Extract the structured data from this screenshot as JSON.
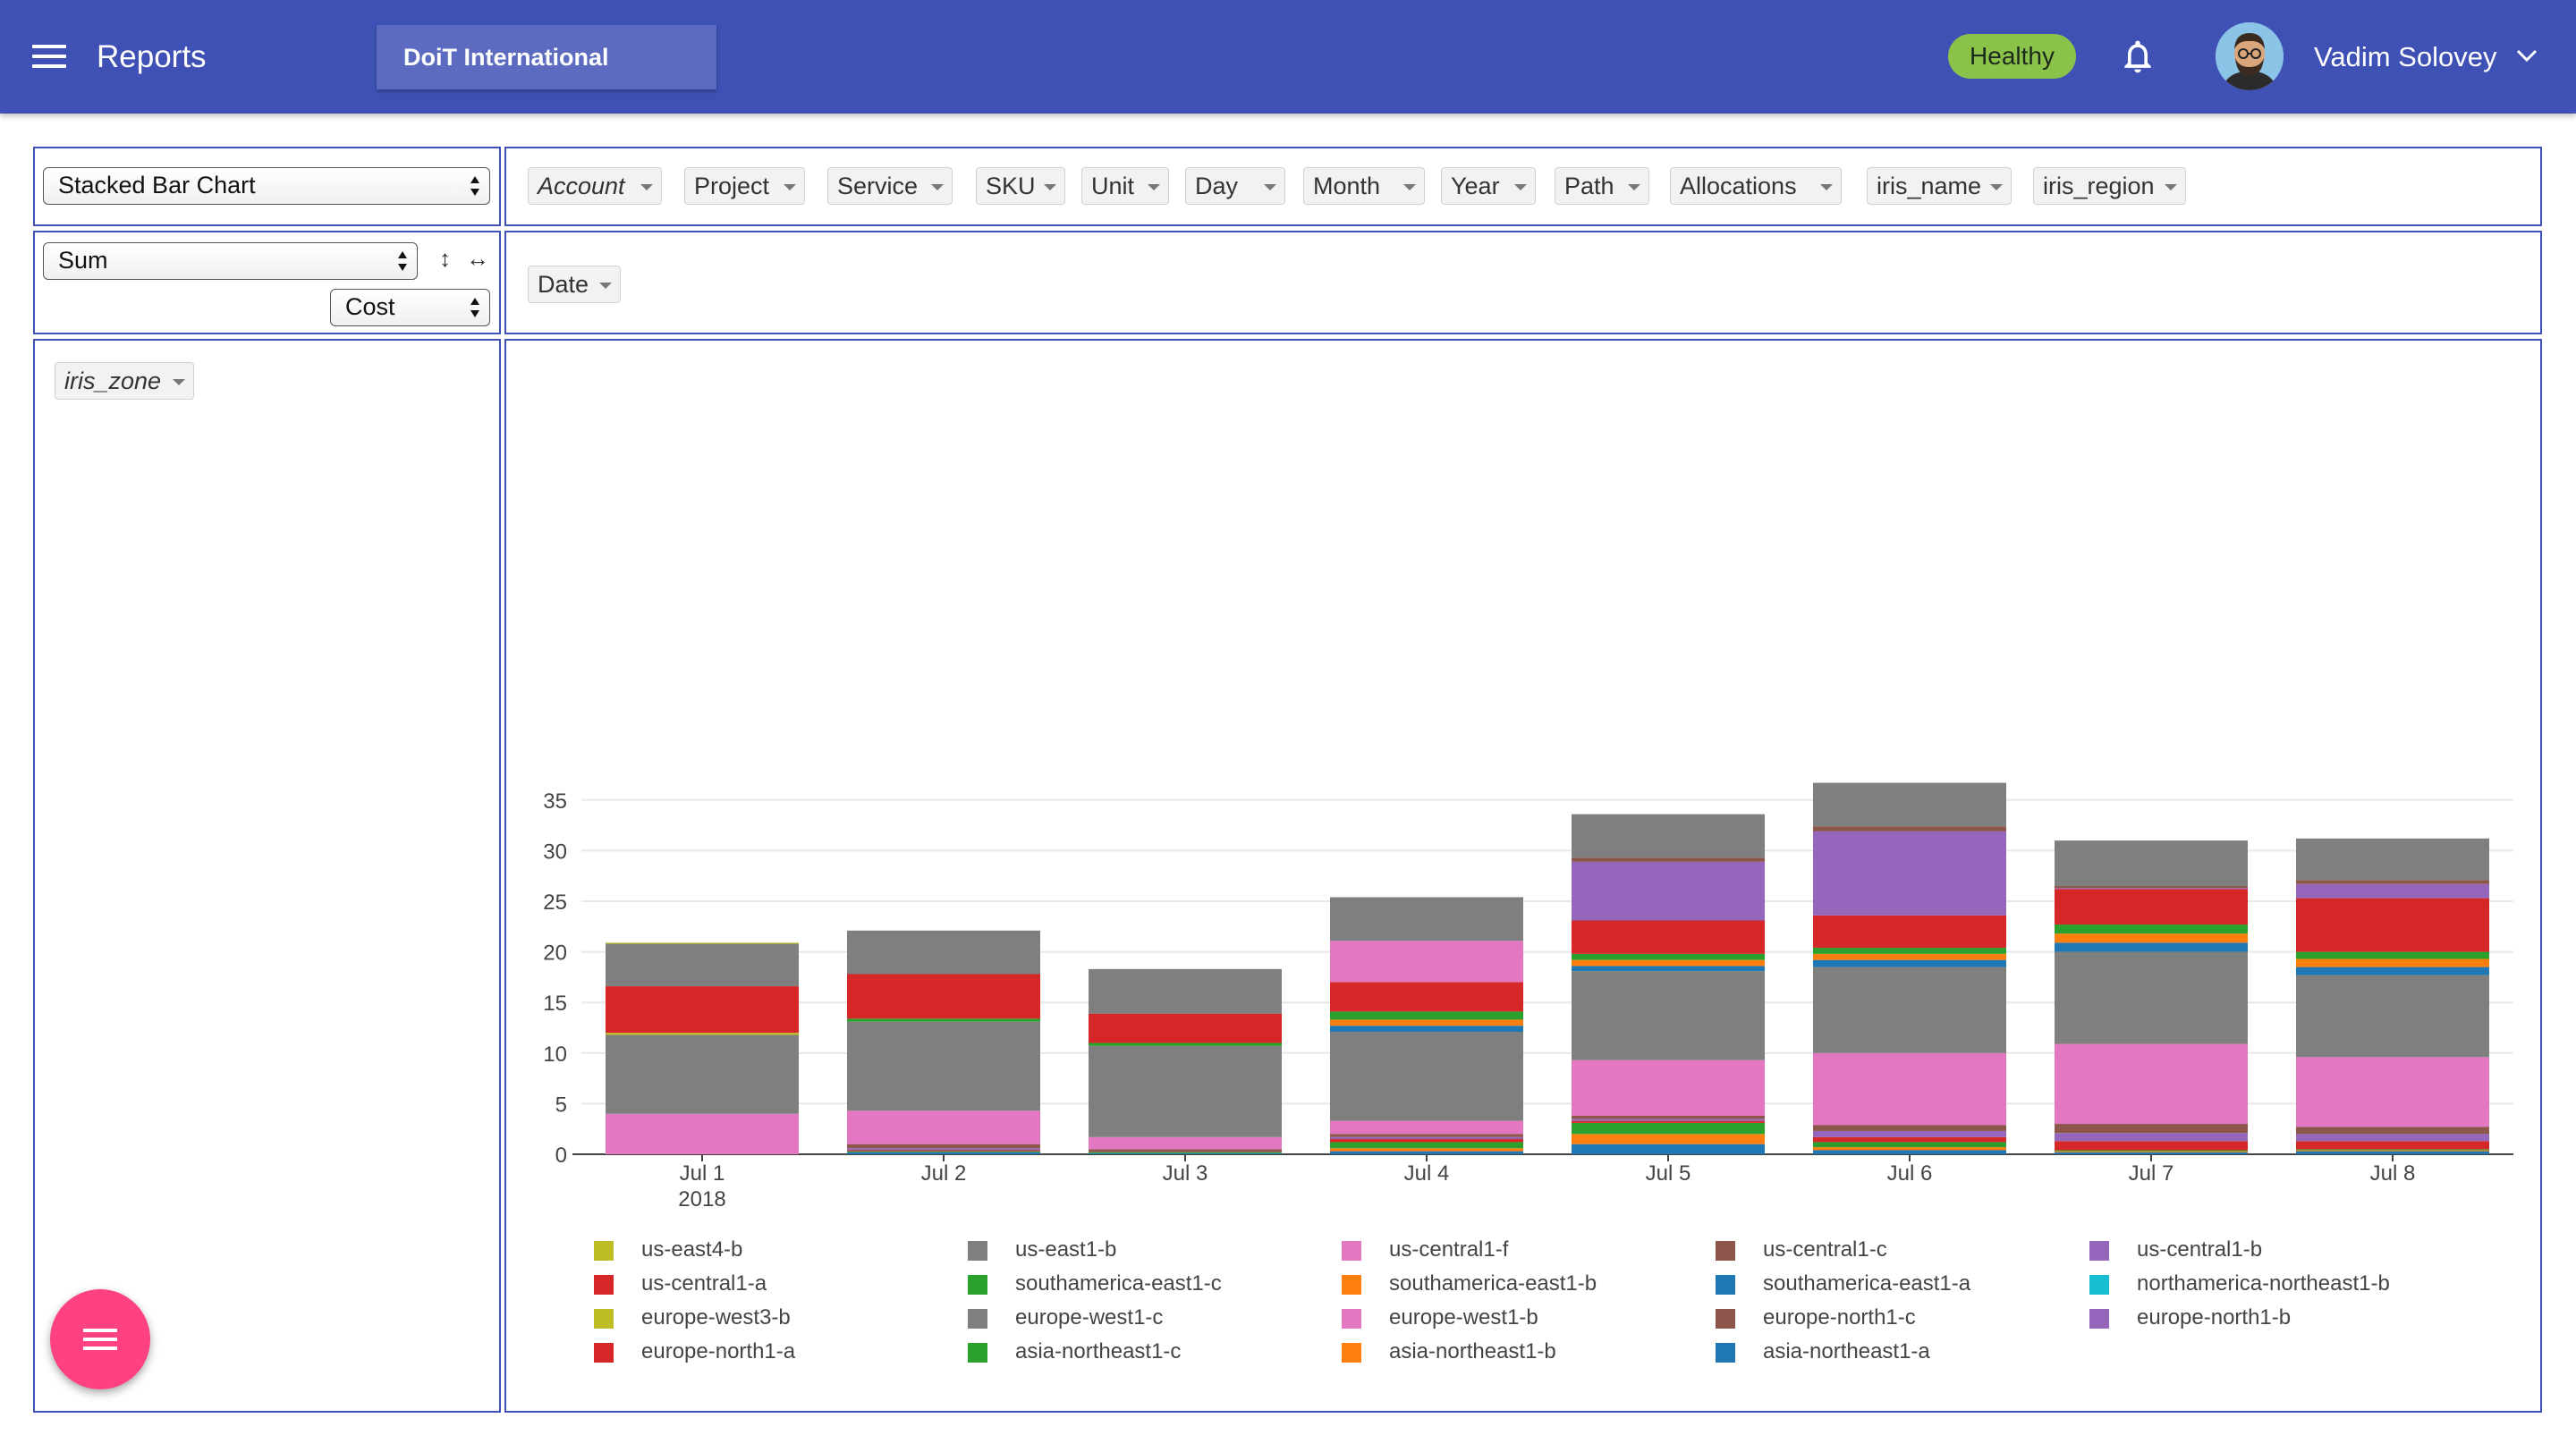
{
  "appbar": {
    "title": "Reports",
    "organization": "DoiT International",
    "status": "Healthy",
    "user_name": "Vadim Solovey"
  },
  "controls": {
    "chart_type": "Stacked Bar Chart",
    "aggregator": "Sum",
    "metric": "Cost"
  },
  "fields": [
    "Account",
    "Project",
    "Service",
    "SKU",
    "Unit",
    "Day",
    "Month",
    "Year",
    "Path",
    "Allocations",
    "iris_name",
    "iris_region"
  ],
  "columns": [
    "Date"
  ],
  "rows": [
    "iris_zone"
  ],
  "chart_data": {
    "type": "bar",
    "stacked": true,
    "categories": [
      "Jul 1",
      "Jul 2",
      "Jul 3",
      "Jul 4",
      "Jul 5",
      "Jul 6",
      "Jul 7",
      "Jul 8"
    ],
    "category_sublabel": "2018",
    "ylim": [
      0,
      37
    ],
    "yticks": [
      0,
      5,
      10,
      15,
      20,
      25,
      30,
      35
    ],
    "grid": true,
    "legend_position": "bottom",
    "series": [
      {
        "name": "asia-northeast1-a",
        "color": "#1f77b4",
        "values": [
          0,
          0.2,
          0.1,
          0.3,
          1,
          0.4,
          0.2,
          0.3
        ]
      },
      {
        "name": "asia-northeast1-b",
        "color": "#ff7f0e",
        "values": [
          0,
          0,
          0,
          0.3,
          1,
          0.3,
          0.1,
          0.1
        ]
      },
      {
        "name": "asia-northeast1-c",
        "color": "#2ca02c",
        "values": [
          0,
          0.1,
          0.1,
          0.6,
          1.1,
          0.5,
          0.1,
          0.1
        ]
      },
      {
        "name": "europe-north1-a",
        "color": "#d62728",
        "values": [
          0,
          0.1,
          0,
          0.3,
          0.2,
          0.5,
          0.9,
          0.8
        ]
      },
      {
        "name": "europe-north1-b",
        "color": "#9467bd",
        "values": [
          0,
          0.2,
          0,
          0.2,
          0.2,
          0.6,
          0.8,
          0.7
        ]
      },
      {
        "name": "europe-north1-c",
        "color": "#8c564b",
        "values": [
          0,
          0.4,
          0.3,
          0.3,
          0.3,
          0.6,
          0.9,
          0.7
        ]
      },
      {
        "name": "europe-west1-b",
        "color": "#e377c2",
        "values": [
          4,
          3.3,
          1.2,
          1.3,
          5.5,
          7.1,
          7.9,
          6.9
        ]
      },
      {
        "name": "europe-west1-c",
        "color": "#7f7f7f",
        "values": [
          7.8,
          8.8,
          9,
          8.8,
          8.8,
          8.5,
          9.1,
          8.1
        ]
      },
      {
        "name": "europe-west3-b",
        "color": "#bcbd22",
        "values": [
          0.2,
          0,
          0,
          0,
          0,
          0,
          0,
          0
        ]
      },
      {
        "name": "northamerica-northeast1-b",
        "color": "#17becf",
        "values": [
          0,
          0,
          0,
          0,
          0,
          0,
          0,
          0
        ]
      },
      {
        "name": "southamerica-east1-a",
        "color": "#1f77b4",
        "values": [
          0,
          0,
          0,
          0.6,
          0.5,
          0.7,
          0.9,
          0.8
        ]
      },
      {
        "name": "southamerica-east1-b",
        "color": "#ff7f0e",
        "values": [
          0,
          0,
          0,
          0.6,
          0.6,
          0.6,
          0.9,
          0.8
        ]
      },
      {
        "name": "southamerica-east1-c",
        "color": "#2ca02c",
        "values": [
          0,
          0.3,
          0.3,
          0.8,
          0.6,
          0.6,
          0.9,
          0.7
        ]
      },
      {
        "name": "us-central1-a",
        "color": "#d62728",
        "values": [
          4.6,
          4.4,
          2.9,
          2.9,
          3.3,
          3.2,
          3.5,
          5.3
        ]
      },
      {
        "name": "us-central1-b",
        "color": "#9467bd",
        "values": [
          0,
          0,
          0,
          0,
          5.8,
          8.3,
          0.1,
          1.4
        ]
      },
      {
        "name": "us-central1-c",
        "color": "#8c564b",
        "values": [
          0,
          0,
          0,
          0,
          0.4,
          0.5,
          0.2,
          0.4
        ]
      },
      {
        "name": "us-central1-f",
        "color": "#e377c2",
        "values": [
          0,
          0,
          0,
          4.1,
          0,
          0,
          0,
          0
        ]
      },
      {
        "name": "us-east1-b",
        "color": "#7f7f7f",
        "values": [
          4.2,
          4.3,
          4.4,
          4.3,
          4.3,
          4.3,
          4.5,
          4.1
        ]
      },
      {
        "name": "us-east4-b",
        "color": "#bcbd22",
        "values": [
          0.1,
          0,
          0,
          0,
          0,
          0,
          0,
          0
        ]
      }
    ],
    "legend_order": [
      "us-east4-b",
      "us-east1-b",
      "us-central1-f",
      "us-central1-c",
      "us-central1-b",
      "us-central1-a",
      "southamerica-east1-c",
      "southamerica-east1-b",
      "southamerica-east1-a",
      "northamerica-northeast1-b",
      "europe-west3-b",
      "europe-west1-c",
      "europe-west1-b",
      "europe-north1-c",
      "europe-north1-b",
      "europe-north1-a",
      "asia-northeast1-c",
      "asia-northeast1-b",
      "asia-northeast1-a"
    ]
  }
}
